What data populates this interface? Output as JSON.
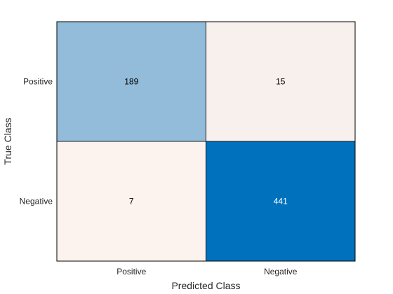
{
  "chart_data": {
    "type": "heatmap",
    "title": "",
    "xlabel": "Predicted Class",
    "ylabel": "True Class",
    "x_categories": [
      "Positive",
      "Negative"
    ],
    "y_categories": [
      "Positive",
      "Negative"
    ],
    "values": [
      [
        189,
        15
      ],
      [
        7,
        441
      ]
    ],
    "grid": false,
    "legend": "none",
    "colors": {
      "high": "#0072bd",
      "low": "#fcf2ee",
      "text_dark": "#000000",
      "text_light": "#ffffff",
      "border": "#000000"
    }
  }
}
